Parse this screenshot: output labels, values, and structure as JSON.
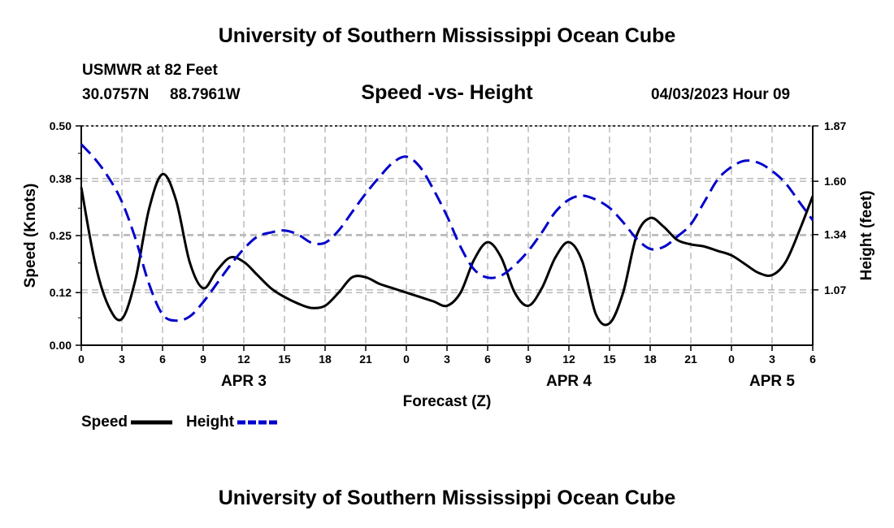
{
  "header": {
    "title": "University of Southern Mississippi Ocean Cube",
    "station": "USMWR at 82 Feet",
    "lat": "30.0757N",
    "lon": "88.7961W",
    "chart_title": "Speed -vs- Height",
    "datetime": "04/03/2023 Hour 09"
  },
  "footer": {
    "title": "University of Southern Mississippi Ocean Cube"
  },
  "chart_data": {
    "type": "line",
    "title": "Speed -vs- Height",
    "xlabel": "Forecast (Z)",
    "ylabel": "Speed (Knots)",
    "y2label": "Height (feet)",
    "x_hours": [
      0,
      1,
      2,
      3,
      4,
      5,
      6,
      7,
      8,
      9,
      10,
      11,
      12,
      13,
      14,
      15,
      16,
      17,
      18,
      19,
      20,
      21,
      22,
      23,
      24,
      25,
      26,
      27,
      28,
      29,
      30,
      31,
      32,
      33,
      34,
      35,
      36,
      37,
      38,
      39,
      40,
      41,
      42,
      43,
      44,
      45,
      46,
      47,
      48,
      49,
      50,
      51,
      52,
      53,
      54
    ],
    "x_tick_labels": [
      "0",
      "3",
      "6",
      "9",
      "12",
      "15",
      "18",
      "21",
      "0",
      "3",
      "6",
      "9",
      "12",
      "15",
      "18",
      "21",
      "0",
      "3",
      "6"
    ],
    "date_labels": [
      {
        "label": "APR 3",
        "hour": 12
      },
      {
        "label": "APR 4",
        "hour": 36
      },
      {
        "label": "APR 5",
        "hour": 51
      }
    ],
    "ylim": [
      0,
      0.5
    ],
    "y_ticks": [
      "0.00",
      "0.12",
      "0.25",
      "0.38",
      "0.50"
    ],
    "y2lim": [
      0.8,
      1.87
    ],
    "y2_ticks": [
      "1.07",
      "1.34",
      "1.60",
      "1.87"
    ],
    "grid": true,
    "series": [
      {
        "name": "Speed",
        "axis": "left",
        "color": "#000000",
        "style": "solid",
        "values": [
          0.36,
          0.19,
          0.09,
          0.06,
          0.15,
          0.31,
          0.39,
          0.33,
          0.19,
          0.13,
          0.17,
          0.2,
          0.19,
          0.16,
          0.13,
          0.11,
          0.095,
          0.085,
          0.09,
          0.12,
          0.155,
          0.155,
          0.14,
          0.13,
          0.12,
          0.11,
          0.1,
          0.09,
          0.12,
          0.195,
          0.235,
          0.2,
          0.12,
          0.09,
          0.13,
          0.2,
          0.235,
          0.19,
          0.07,
          0.05,
          0.12,
          0.25,
          0.29,
          0.27,
          0.24,
          0.23,
          0.225,
          0.215,
          0.205,
          0.185,
          0.165,
          0.16,
          0.19,
          0.26,
          0.34
        ]
      },
      {
        "name": "Height",
        "axis": "right",
        "color": "#0000cc",
        "style": "dashed",
        "values": [
          1.78,
          1.71,
          1.62,
          1.5,
          1.32,
          1.1,
          0.95,
          0.92,
          0.94,
          1.01,
          1.1,
          1.19,
          1.27,
          1.33,
          1.35,
          1.36,
          1.34,
          1.3,
          1.3,
          1.36,
          1.45,
          1.54,
          1.62,
          1.69,
          1.72,
          1.67,
          1.56,
          1.43,
          1.28,
          1.17,
          1.13,
          1.14,
          1.19,
          1.26,
          1.35,
          1.45,
          1.51,
          1.53,
          1.51,
          1.47,
          1.4,
          1.32,
          1.27,
          1.28,
          1.33,
          1.39,
          1.5,
          1.61,
          1.67,
          1.7,
          1.69,
          1.65,
          1.59,
          1.5,
          1.41
        ]
      }
    ],
    "legend": [
      "Speed",
      "Height"
    ],
    "legend_position": "bottom-left"
  }
}
